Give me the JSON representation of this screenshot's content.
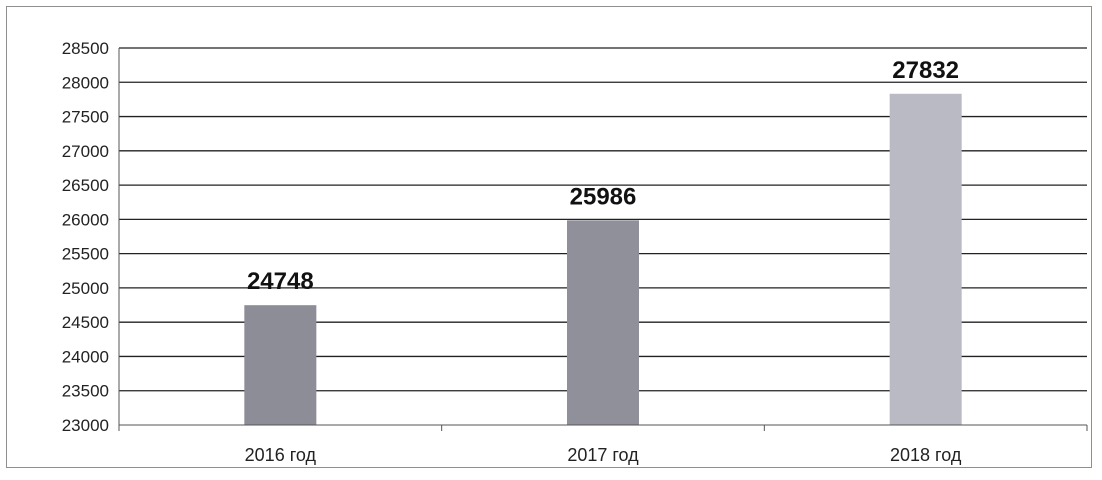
{
  "chart_data": {
    "type": "bar",
    "categories": [
      "2016 год",
      "2017 год",
      "2018 год"
    ],
    "values": [
      24748,
      25986,
      27832
    ],
    "data_labels": [
      "24748",
      "25986",
      "27832"
    ],
    "ylim": [
      23000,
      28500
    ],
    "ytick_step": 500,
    "yticks": [
      "23000",
      "23500",
      "24000",
      "24500",
      "25000",
      "25500",
      "26000",
      "26500",
      "27000",
      "27500",
      "28000",
      "28500"
    ],
    "grid": true,
    "legend": "none",
    "bar_colors": [
      "#8c8d97",
      "#8f9099",
      "#b9bac4"
    ],
    "title": "",
    "xlabel": "",
    "ylabel": ""
  }
}
